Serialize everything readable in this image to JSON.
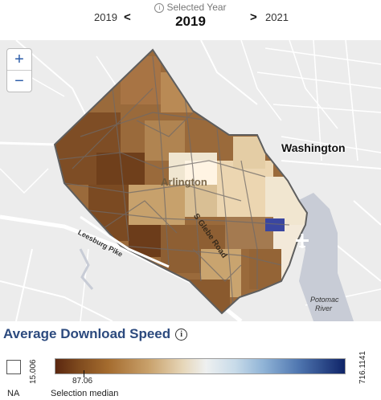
{
  "year_selector": {
    "label": "Selected Year",
    "info_icon": "i",
    "selected": "2019",
    "previous": "2019",
    "next": "2021",
    "prev_arrow": "<",
    "next_arrow": ">"
  },
  "map": {
    "zoom_in": "+",
    "zoom_out": "−",
    "labels": {
      "washington": "Washington",
      "arlington": "Arlington",
      "leesburg_pike": "Leesburg Pike",
      "s_glebe_road": "S Glebe Road",
      "potomac_line1": "Potomac",
      "potomac_line2": "River"
    }
  },
  "legend": {
    "title": "Average Download Speed",
    "info_icon": "i",
    "min": "15.006",
    "max": "716.1141",
    "median_value": "87.06",
    "median_label": "Selection median",
    "na_label": "NA",
    "colors": {
      "low": "#5b2710",
      "mid": "#eef0f0",
      "high": "#0f2468"
    }
  }
}
